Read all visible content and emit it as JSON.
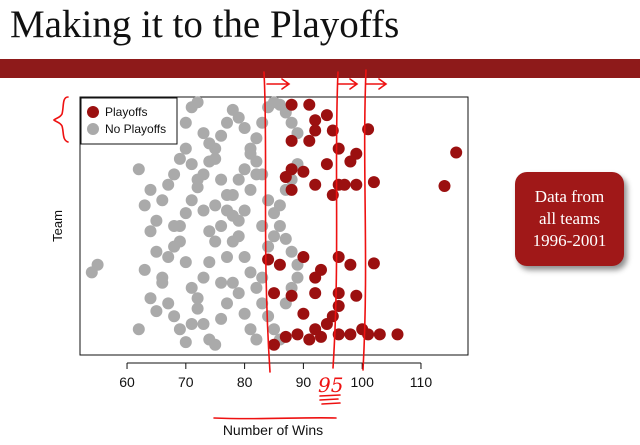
{
  "slide": {
    "title": "Making it to the Playoffs",
    "callout": {
      "line1": "Data from",
      "line2": "all teams",
      "line3": "1996-2001"
    },
    "handwritten_label": "95"
  },
  "colors": {
    "band": "#8e1a1a",
    "playoffs": "#9b1010",
    "no_playoffs": "#aaaaaa",
    "ink": "#ee1111"
  },
  "chart_data": {
    "type": "scatter",
    "xlabel": "Number of Wins",
    "ylabel": "Team",
    "xlim": [
      52,
      118
    ],
    "ylim": [
      0,
      1
    ],
    "xticks": [
      "60",
      "70",
      "80",
      "90",
      "100",
      "110"
    ],
    "legend_position": "top-left",
    "series": [
      {
        "name": "Playoffs",
        "points": [
          [
            116,
            0.785
          ],
          [
            114,
            0.655
          ],
          [
            102,
            0.67
          ],
          [
            102,
            0.355
          ],
          [
            96,
            0.66
          ],
          [
            97,
            0.66
          ],
          [
            99,
            0.66
          ],
          [
            92,
            0.66
          ],
          [
            88,
            0.72
          ],
          [
            90,
            0.71
          ],
          [
            94,
            0.74
          ],
          [
            98,
            0.75
          ],
          [
            96,
            0.8
          ],
          [
            92,
            0.87
          ],
          [
            95,
            0.87
          ],
          [
            94,
            0.93
          ],
          [
            91,
            0.97
          ],
          [
            88,
            0.97
          ],
          [
            92,
            0.91
          ],
          [
            101,
            0.875
          ],
          [
            91,
            0.83
          ],
          [
            88,
            0.83
          ],
          [
            99,
            0.78
          ],
          [
            87,
            0.69
          ],
          [
            88,
            0.64
          ],
          [
            95,
            0.62
          ],
          [
            98,
            0.35
          ],
          [
            93,
            0.33
          ],
          [
            86,
            0.35
          ],
          [
            92,
            0.24
          ],
          [
            88,
            0.23
          ],
          [
            96,
            0.24
          ],
          [
            99,
            0.23
          ],
          [
            96,
            0.19
          ],
          [
            85,
            0.24
          ],
          [
            90,
            0.16
          ],
          [
            94,
            0.12
          ],
          [
            96,
            0.08
          ],
          [
            98,
            0.08
          ],
          [
            101,
            0.08
          ],
          [
            103,
            0.08
          ],
          [
            106,
            0.08
          ],
          [
            100,
            0.1
          ],
          [
            92,
            0.1
          ],
          [
            95,
            0.15
          ],
          [
            92,
            0.3
          ],
          [
            89,
            0.08
          ],
          [
            91,
            0.06
          ],
          [
            93,
            0.07
          ],
          [
            90,
            0.38
          ],
          [
            96,
            0.38
          ],
          [
            84,
            0.37
          ],
          [
            85,
            0.04
          ],
          [
            87,
            0.07
          ]
        ]
      },
      {
        "name": "No Playoffs",
        "points": [
          [
            54,
            0.32
          ],
          [
            55,
            0.35
          ],
          [
            62,
            0.1
          ],
          [
            63,
            0.33
          ],
          [
            64,
            0.22
          ],
          [
            65,
            0.17
          ],
          [
            66,
            0.28
          ],
          [
            67,
            0.38
          ],
          [
            68,
            0.42
          ],
          [
            69,
            0.5
          ],
          [
            70,
            0.55
          ],
          [
            71,
            0.6
          ],
          [
            72,
            0.65
          ],
          [
            73,
            0.7
          ],
          [
            74,
            0.75
          ],
          [
            75,
            0.8
          ],
          [
            76,
            0.85
          ],
          [
            77,
            0.9
          ],
          [
            78,
            0.95
          ],
          [
            79,
            0.92
          ],
          [
            80,
            0.88
          ],
          [
            81,
            0.8
          ],
          [
            82,
            0.75
          ],
          [
            83,
            0.7
          ],
          [
            84,
            0.6
          ],
          [
            85,
            0.55
          ],
          [
            86,
            0.5
          ],
          [
            87,
            0.45
          ],
          [
            88,
            0.4
          ],
          [
            89,
            0.35
          ],
          [
            62,
            0.72
          ],
          [
            63,
            0.58
          ],
          [
            64,
            0.48
          ],
          [
            65,
            0.4
          ],
          [
            66,
            0.3
          ],
          [
            67,
            0.2
          ],
          [
            68,
            0.15
          ],
          [
            69,
            0.1
          ],
          [
            70,
            0.05
          ],
          [
            71,
            0.12
          ],
          [
            72,
            0.22
          ],
          [
            73,
            0.3
          ],
          [
            74,
            0.36
          ],
          [
            75,
            0.44
          ],
          [
            76,
            0.5
          ],
          [
            77,
            0.56
          ],
          [
            78,
            0.62
          ],
          [
            79,
            0.68
          ],
          [
            80,
            0.72
          ],
          [
            81,
            0.78
          ],
          [
            82,
            0.84
          ],
          [
            83,
            0.9
          ],
          [
            84,
            0.96
          ],
          [
            85,
            0.98
          ],
          [
            86,
            0.97
          ],
          [
            87,
            0.94
          ],
          [
            88,
            0.9
          ],
          [
            89,
            0.86
          ],
          [
            70,
            0.9
          ],
          [
            71,
            0.96
          ],
          [
            72,
            0.98
          ],
          [
            73,
            0.86
          ],
          [
            74,
            0.82
          ],
          [
            75,
            0.76
          ],
          [
            76,
            0.68
          ],
          [
            77,
            0.62
          ],
          [
            78,
            0.54
          ],
          [
            79,
            0.46
          ],
          [
            80,
            0.38
          ],
          [
            81,
            0.32
          ],
          [
            82,
            0.26
          ],
          [
            83,
            0.2
          ],
          [
            84,
            0.15
          ],
          [
            85,
            0.1
          ],
          [
            86,
            0.06
          ],
          [
            87,
            0.2
          ],
          [
            88,
            0.26
          ],
          [
            89,
            0.3
          ],
          [
            66,
            0.6
          ],
          [
            67,
            0.66
          ],
          [
            68,
            0.5
          ],
          [
            69,
            0.44
          ],
          [
            70,
            0.36
          ],
          [
            71,
            0.26
          ],
          [
            72,
            0.18
          ],
          [
            73,
            0.12
          ],
          [
            74,
            0.06
          ],
          [
            75,
            0.04
          ],
          [
            76,
            0.14
          ],
          [
            77,
            0.2
          ],
          [
            78,
            0.28
          ],
          [
            79,
            0.24
          ],
          [
            80,
            0.16
          ],
          [
            81,
            0.1
          ],
          [
            82,
            0.06
          ],
          [
            83,
            0.3
          ],
          [
            84,
            0.42
          ],
          [
            85,
            0.46
          ],
          [
            86,
            0.58
          ],
          [
            87,
            0.64
          ],
          [
            88,
            0.68
          ],
          [
            89,
            0.74
          ],
          [
            65,
            0.52
          ],
          [
            64,
            0.64
          ],
          [
            68,
            0.7
          ],
          [
            69,
            0.76
          ],
          [
            70,
            0.8
          ],
          [
            71,
            0.74
          ],
          [
            72,
            0.68
          ],
          [
            73,
            0.56
          ],
          [
            74,
            0.48
          ],
          [
            75,
            0.58
          ],
          [
            76,
            0.28
          ],
          [
            77,
            0.38
          ],
          [
            78,
            0.44
          ],
          [
            79,
            0.52
          ],
          [
            80,
            0.56
          ],
          [
            81,
            0.64
          ],
          [
            82,
            0.7
          ],
          [
            83,
            0.5
          ]
        ]
      }
    ]
  }
}
